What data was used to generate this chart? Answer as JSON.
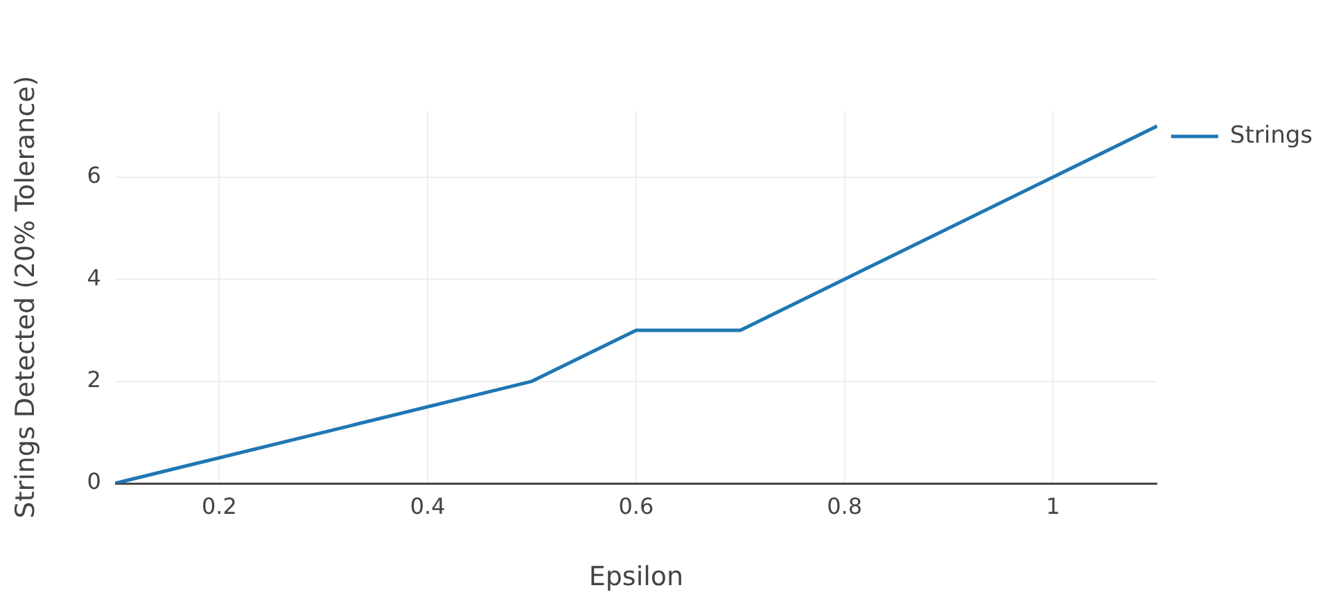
{
  "chart_data": {
    "type": "line",
    "xlabel": "Epsilon",
    "ylabel": "Strings Detected (20% Tolerance)",
    "x": [
      0.1,
      0.5,
      0.6,
      0.7,
      1.1
    ],
    "series": [
      {
        "name": "Strings",
        "color": "#1f77b4",
        "values": [
          0,
          2,
          3,
          3,
          7
        ]
      }
    ],
    "xlim": [
      0.1,
      1.1
    ],
    "xticks": [
      0.2,
      0.4,
      0.6,
      0.8,
      1
    ],
    "ylim": [
      0,
      7.3
    ],
    "yticks": [
      0,
      2,
      4,
      6
    ],
    "grid": true,
    "legend": "top right",
    "marker": "none",
    "line_style": "solid"
  }
}
